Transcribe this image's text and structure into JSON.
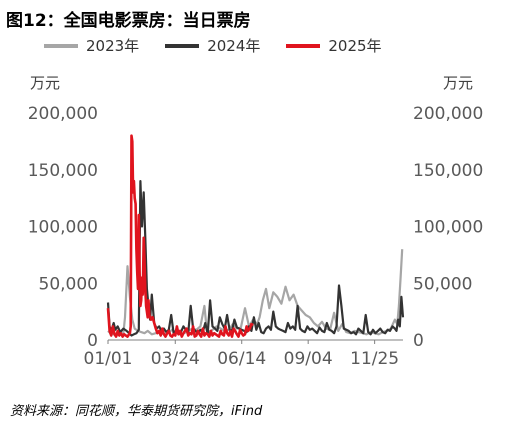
{
  "title": "图12：全国电影票房：当日票房",
  "unit_left": "万元",
  "unit_right": "万元",
  "source": "资料来源：同花顺，华泰期货研究院，iFind",
  "chart_data": {
    "type": "line",
    "title": "图12：全国电影票房：当日票房",
    "ylabel_left": "万元",
    "ylabel_right": "万元",
    "ylim": [
      0,
      200000
    ],
    "yticks": [
      0,
      50000,
      100000,
      150000,
      200000
    ],
    "ytick_labels": [
      "0",
      "50,000",
      "100,000",
      "150,000",
      "200,000"
    ],
    "xlim": [
      1,
      365
    ],
    "xticks": [
      1,
      84,
      166,
      248,
      330
    ],
    "xtick_labels": [
      "01/01",
      "03/24",
      "06/14",
      "09/04",
      "11/25"
    ],
    "grid": false,
    "legend_position": "top",
    "series": [
      {
        "name": "2023年",
        "color": "#a6a6a6",
        "x": [
          1,
          4,
          8,
          12,
          16,
          20,
          22,
          25,
          28,
          31,
          34,
          38,
          42,
          46,
          50,
          55,
          60,
          65,
          70,
          75,
          80,
          85,
          90,
          95,
          100,
          105,
          110,
          115,
          120,
          122,
          124,
          126,
          130,
          135,
          140,
          145,
          150,
          155,
          160,
          165,
          170,
          175,
          180,
          185,
          188,
          192,
          196,
          200,
          205,
          210,
          215,
          220,
          225,
          230,
          235,
          240,
          245,
          250,
          255,
          260,
          265,
          270,
          275,
          280,
          285,
          290,
          295,
          300,
          305,
          310,
          315,
          320,
          325,
          330,
          335,
          340,
          345,
          350,
          355,
          358,
          360,
          362,
          364
        ],
        "values": [
          8000,
          6000,
          5000,
          4500,
          5000,
          6000,
          20000,
          65000,
          38000,
          18000,
          10000,
          8000,
          7000,
          6000,
          8000,
          5000,
          6000,
          7000,
          5000,
          6000,
          9000,
          7000,
          5000,
          6000,
          8000,
          10000,
          9000,
          12000,
          30000,
          15000,
          9000,
          7000,
          9000,
          12000,
          10000,
          8000,
          9000,
          14000,
          10000,
          11000,
          28000,
          12000,
          18000,
          14000,
          20000,
          35000,
          45000,
          28000,
          42000,
          38000,
          32000,
          47000,
          35000,
          40000,
          30000,
          26000,
          22000,
          20000,
          15000,
          12000,
          16000,
          10000,
          9000,
          24000,
          8000,
          14000,
          7000,
          6000,
          8000,
          7000,
          6000,
          5000,
          7000,
          6000,
          5000,
          7000,
          8000,
          10000,
          18000,
          14000,
          30000,
          55000,
          80000
        ]
      },
      {
        "name": "2024年",
        "color": "#333333",
        "x": [
          1,
          3,
          5,
          8,
          10,
          13,
          16,
          20,
          24,
          27,
          30,
          33,
          36,
          39,
          41,
          43,
          45,
          47,
          49,
          51,
          53,
          55,
          58,
          61,
          64,
          67,
          70,
          73,
          76,
          79,
          82,
          85,
          88,
          91,
          94,
          97,
          100,
          103,
          106,
          109,
          112,
          115,
          118,
          121,
          124,
          127,
          130,
          133,
          136,
          139,
          142,
          145,
          148,
          151,
          154,
          157,
          160,
          163,
          166,
          169,
          172,
          175,
          178,
          181,
          184,
          187,
          190,
          193,
          196,
          199,
          202,
          205,
          208,
          211,
          214,
          217,
          220,
          223,
          226,
          229,
          232,
          235,
          238,
          241,
          244,
          247,
          250,
          253,
          256,
          259,
          262,
          265,
          268,
          271,
          274,
          277,
          280,
          283,
          286,
          289,
          292,
          295,
          298,
          301,
          304,
          307,
          310,
          313,
          316,
          319,
          322,
          325,
          328,
          331,
          334,
          337,
          340,
          343,
          346,
          349,
          352,
          355,
          357,
          359,
          361,
          363,
          365
        ],
        "values": [
          33000,
          12000,
          8000,
          15000,
          9000,
          12000,
          7000,
          10000,
          8000,
          6000,
          4000,
          5000,
          6000,
          9000,
          140000,
          100000,
          130000,
          90000,
          45000,
          30000,
          18000,
          40000,
          15000,
          10000,
          12000,
          8000,
          10000,
          7000,
          9000,
          22000,
          6000,
          8000,
          5000,
          7000,
          12000,
          9000,
          6000,
          30000,
          10000,
          8000,
          6000,
          9000,
          7000,
          15000,
          5000,
          35000,
          12000,
          10000,
          8000,
          20000,
          14000,
          10000,
          22000,
          9000,
          8000,
          18000,
          11000,
          10000,
          9000,
          8000,
          7000,
          12000,
          8000,
          20000,
          9000,
          15000,
          7000,
          6000,
          10000,
          12000,
          9000,
          25000,
          12000,
          10000,
          9000,
          8000,
          7000,
          15000,
          10000,
          12000,
          9000,
          30000,
          10000,
          8000,
          7000,
          12000,
          9000,
          10000,
          8000,
          6000,
          11000,
          8000,
          7000,
          15000,
          9000,
          8000,
          6000,
          12000,
          48000,
          30000,
          10000,
          9000,
          8000,
          6000,
          7000,
          5000,
          10000,
          8000,
          6000,
          22000,
          7000,
          5000,
          9000,
          6000,
          8000,
          10000,
          7000,
          6000,
          9000,
          8000,
          12000,
          10000,
          8000,
          18000,
          12000,
          38000,
          20000
        ]
      },
      {
        "name": "2025年",
        "color": "#e0141e",
        "x": [
          1,
          3,
          5,
          7,
          9,
          11,
          13,
          15,
          17,
          19,
          21,
          23,
          25,
          27,
          28,
          29,
          30,
          31,
          32,
          33,
          34,
          35,
          36,
          37,
          38,
          39,
          40,
          41,
          42,
          43,
          44,
          45,
          46,
          47,
          48,
          49,
          50,
          51,
          52,
          54,
          56,
          58,
          60,
          62,
          64,
          66,
          68,
          70,
          72,
          74,
          76,
          78,
          80,
          82,
          84,
          86,
          88,
          90,
          92,
          94,
          96,
          98,
          100,
          102,
          104,
          106,
          108,
          110,
          112,
          114,
          116,
          118,
          120,
          122,
          124,
          126,
          128,
          130,
          132,
          134,
          136,
          138,
          140,
          142,
          144,
          146,
          148,
          150,
          152,
          154,
          156,
          158,
          160,
          162,
          164,
          166,
          168,
          170,
          172,
          174,
          176,
          178,
          180
        ],
        "values": [
          28000,
          8000,
          4000,
          12000,
          5000,
          3000,
          8000,
          4000,
          6000,
          3000,
          5000,
          4000,
          3000,
          5000,
          6000,
          12000,
          180000,
          175000,
          130000,
          140000,
          125000,
          120000,
          80000,
          60000,
          45000,
          110000,
          60000,
          30000,
          35000,
          55000,
          40000,
          90000,
          70000,
          45000,
          30000,
          25000,
          20000,
          35000,
          22000,
          18000,
          20000,
          15000,
          10000,
          6000,
          8000,
          4000,
          10000,
          5000,
          3000,
          6000,
          8000,
          4000,
          3000,
          5000,
          4000,
          12000,
          5000,
          8000,
          3000,
          6000,
          8000,
          10000,
          4000,
          6000,
          5000,
          12000,
          3000,
          4000,
          8000,
          5000,
          3000,
          10000,
          4000,
          6000,
          5000,
          3000,
          8000,
          4000,
          6000,
          5000,
          4000,
          3000,
          8000,
          5000,
          4000,
          12000,
          6000,
          4000,
          8000,
          3000,
          10000,
          8000,
          5000,
          3000,
          9000,
          6000,
          4000,
          5000,
          12000,
          8000,
          10000,
          14000,
          13000
        ]
      }
    ]
  }
}
